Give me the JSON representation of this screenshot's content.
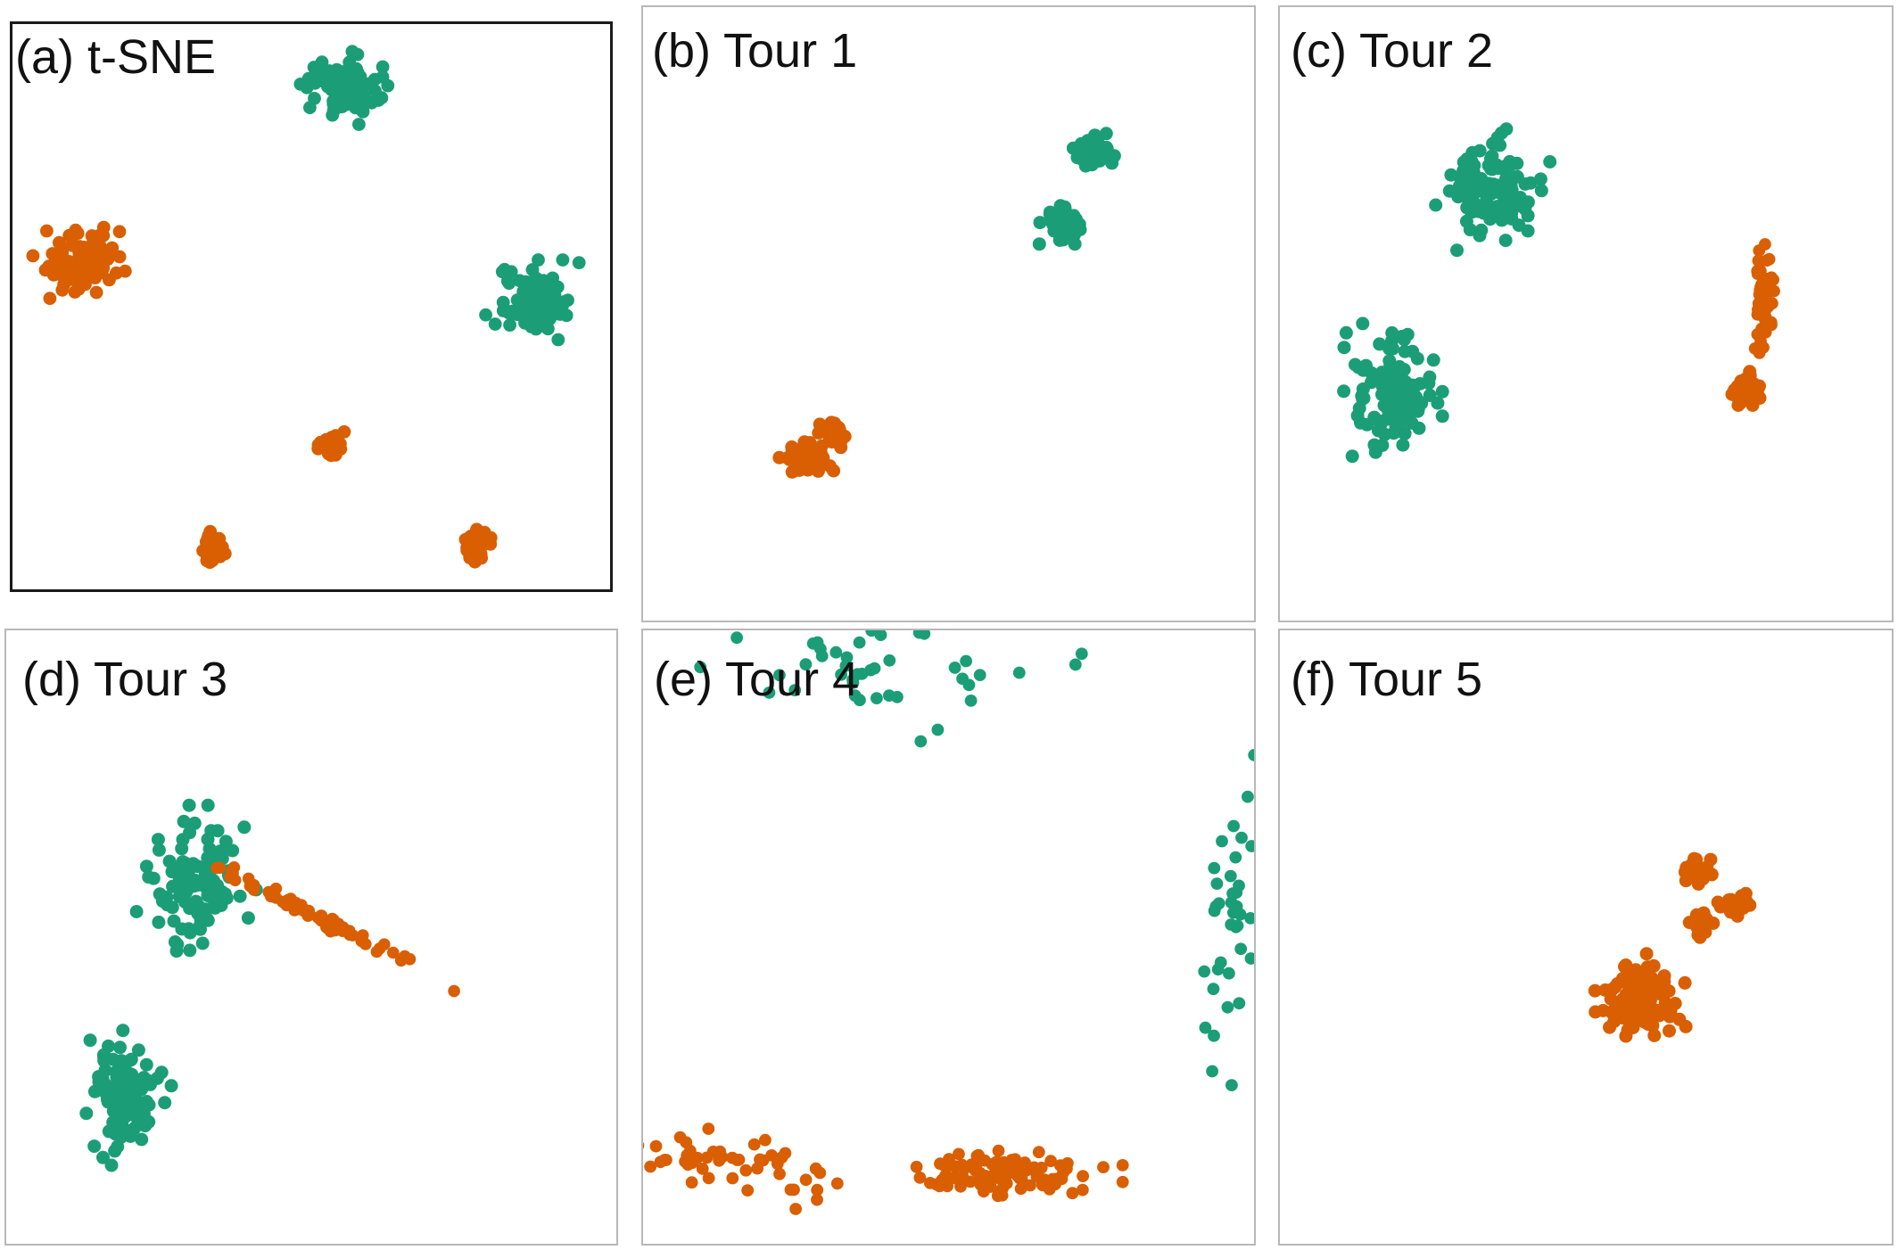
{
  "colors": {
    "group_a": "#1b9e77",
    "group_b": "#d95f02"
  },
  "chart_data": [
    {
      "type": "scatter",
      "title": "(a) t-SNE",
      "xlim": [
        0,
        100
      ],
      "ylim": [
        0,
        100
      ],
      "grid": false,
      "legend": "none",
      "clusters": [
        {
          "color": "group_a",
          "cx": 55,
          "cy": 89,
          "sx": 3.0,
          "sy": 2.7,
          "n": 90,
          "r": 1.1
        },
        {
          "color": "group_a",
          "cx": 87,
          "cy": 51,
          "sx": 3.0,
          "sy": 2.8,
          "n": 90,
          "r": 1.1
        },
        {
          "color": "group_b",
          "cx": 12,
          "cy": 58,
          "sx": 3.3,
          "sy": 2.8,
          "n": 90,
          "r": 1.1
        },
        {
          "color": "group_b",
          "cx": 53.5,
          "cy": 25.5,
          "sx": 1.0,
          "sy": 1.0,
          "n": 45,
          "r": 1.1
        },
        {
          "color": "group_b",
          "cx": 33.5,
          "cy": 7.5,
          "sx": 1.0,
          "sy": 1.3,
          "n": 45,
          "r": 1.1
        },
        {
          "color": "group_b",
          "cx": 77.5,
          "cy": 7.5,
          "sx": 1.0,
          "sy": 1.2,
          "n": 45,
          "r": 1.1
        }
      ]
    },
    {
      "type": "scatter",
      "title": "(b) Tour 1",
      "xlim": [
        0,
        100
      ],
      "ylim": [
        0,
        100
      ],
      "grid": false,
      "legend": "none",
      "clusters": [
        {
          "color": "group_a",
          "cx": 73.5,
          "cy": 76.5,
          "sx": 1.4,
          "sy": 1.2,
          "n": 60,
          "r": 1.1
        },
        {
          "color": "group_a",
          "cx": 68.5,
          "cy": 64.5,
          "sx": 1.4,
          "sy": 1.2,
          "n": 60,
          "r": 1.1
        },
        {
          "color": "group_b",
          "cx": 26.5,
          "cy": 26.5,
          "sx": 1.8,
          "sy": 1.0,
          "n": 55,
          "r": 1.1
        },
        {
          "color": "group_b",
          "cx": 31.0,
          "cy": 30.5,
          "sx": 1.0,
          "sy": 0.9,
          "n": 25,
          "r": 1.1
        }
      ]
    },
    {
      "type": "scatter",
      "title": "(c) Tour 2",
      "xlim": [
        0,
        100
      ],
      "ylim": [
        0,
        100
      ],
      "grid": false,
      "legend": "none",
      "clusters": [
        {
          "color": "group_a",
          "cx": 34.5,
          "cy": 70.5,
          "sx": 3.7,
          "sy": 3.9,
          "n": 110,
          "r": 1.1
        },
        {
          "color": "group_a",
          "cx": 18.5,
          "cy": 37.5,
          "sx": 3.1,
          "sy": 4.2,
          "n": 110,
          "r": 1.1
        },
        {
          "color": "group_b",
          "cx": 76.0,
          "cy": 37.5,
          "sx": 1.2,
          "sy": 1.2,
          "n": 40,
          "r": 1.1
        },
        {
          "color": "group_b",
          "cx": 79.0,
          "cy": 52.0,
          "sx": 0.7,
          "sy": 4.0,
          "n": 55,
          "r": 1.0
        }
      ]
    },
    {
      "type": "scatter",
      "title": "(d) Tour 3",
      "xlim": [
        0,
        100
      ],
      "ylim": [
        0,
        100
      ],
      "grid": false,
      "legend": "none",
      "clusters": [
        {
          "color": "group_a",
          "cx": 31.5,
          "cy": 59.0,
          "sx": 3.9,
          "sy": 4.8,
          "n": 110,
          "r": 1.1
        },
        {
          "color": "group_a",
          "cx": 19.0,
          "cy": 24.0,
          "sx": 3.1,
          "sy": 4.8,
          "n": 110,
          "r": 1.1
        },
        {
          "color": "group_b",
          "cx": 50.5,
          "cy": 53.5,
          "sx": 10.0,
          "sy": 0.5,
          "n": 75,
          "r": 1.0,
          "angle": -27
        }
      ]
    },
    {
      "type": "scatter",
      "title": "(e) Tour 4",
      "xlim": [
        0,
        100
      ],
      "ylim": [
        0,
        100
      ],
      "grid": false,
      "legend": "none",
      "clusters": [
        {
          "color": "group_a",
          "cx": 38,
          "cy": 93,
          "sx": 13.0,
          "sy": 5.0,
          "n": 45,
          "r": 1.0
        },
        {
          "color": "group_a",
          "cx": 96,
          "cy": 55,
          "sx": 3.5,
          "sy": 13.0,
          "n": 40,
          "r": 1.0
        },
        {
          "color": "group_b",
          "cx": 12,
          "cy": 13,
          "sx": 8.5,
          "sy": 2.5,
          "n": 55,
          "r": 1.0,
          "angle": -14
        },
        {
          "color": "group_b",
          "cx": 59,
          "cy": 11,
          "sx": 7.5,
          "sy": 1.8,
          "n": 95,
          "r": 1.0
        }
      ]
    },
    {
      "type": "scatter",
      "title": "(f) Tour 5",
      "xlim": [
        0,
        100
      ],
      "ylim": [
        0,
        100
      ],
      "grid": false,
      "legend": "none",
      "clusters": [
        {
          "color": "group_b",
          "cx": 59.0,
          "cy": 40.0,
          "sx": 3.3,
          "sy": 2.8,
          "n": 120,
          "r": 1.1
        },
        {
          "color": "group_b",
          "cx": 68.5,
          "cy": 52.0,
          "sx": 1.0,
          "sy": 1.0,
          "n": 25,
          "r": 1.1
        },
        {
          "color": "group_b",
          "cx": 68.0,
          "cy": 61.0,
          "sx": 1.0,
          "sy": 0.9,
          "n": 25,
          "r": 1.1
        },
        {
          "color": "group_b",
          "cx": 74.5,
          "cy": 55.0,
          "sx": 1.3,
          "sy": 0.8,
          "n": 25,
          "r": 1.1
        }
      ]
    }
  ]
}
